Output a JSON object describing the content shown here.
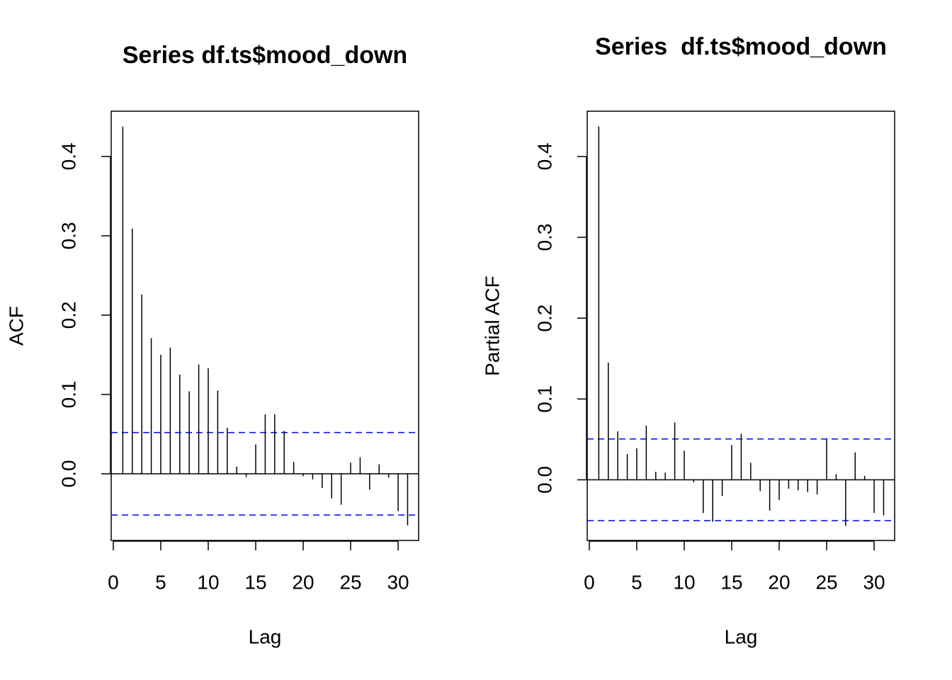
{
  "chart_data": [
    {
      "type": "acf",
      "title": "Series df.ts$mood_down",
      "xlabel": "Lag",
      "ylabel": "ACF",
      "x": [
        1,
        2,
        3,
        4,
        5,
        6,
        7,
        8,
        9,
        10,
        11,
        12,
        13,
        14,
        15,
        16,
        17,
        18,
        19,
        20,
        21,
        22,
        23,
        24,
        25,
        26,
        27,
        28,
        29,
        30,
        31
      ],
      "values": [
        0.4375,
        0.309,
        0.226,
        0.171,
        0.15,
        0.159,
        0.125,
        0.104,
        0.138,
        0.133,
        0.105,
        0.058,
        0.009,
        -0.004,
        0.037,
        0.075,
        0.075,
        0.054,
        0.015,
        -0.003,
        -0.007,
        -0.018,
        -0.031,
        -0.039,
        0.014,
        0.021,
        -0.02,
        0.012,
        -0.005,
        -0.047,
        -0.065
      ],
      "color": "#000000",
      "ci_lines": [
        0.052,
        -0.052
      ],
      "ci_color": "#0000ff",
      "xlim": [
        -0.22,
        32.16
      ],
      "ylim": [
        -0.084,
        0.457
      ],
      "xticks": [
        0,
        5,
        10,
        15,
        20,
        25,
        30
      ],
      "yticks": [
        {
          "value": 0,
          "label": "0.0"
        },
        0.1,
        0.2,
        0.3,
        0.4
      ]
    },
    {
      "type": "acf",
      "title": "Series  df.ts$mood_down",
      "xlabel": "Lag",
      "ylabel": "Partial ACF",
      "x": [
        1,
        2,
        3,
        4,
        5,
        6,
        7,
        8,
        9,
        10,
        11,
        12,
        13,
        14,
        15,
        16,
        17,
        18,
        19,
        20,
        21,
        22,
        23,
        24,
        25,
        26,
        27,
        28,
        29,
        30,
        31
      ],
      "values": [
        0.437,
        0.145,
        0.06,
        0.032,
        0.039,
        0.067,
        0.01,
        0.009,
        0.071,
        0.036,
        -0.003,
        -0.041,
        -0.052,
        -0.02,
        0.043,
        0.057,
        0.021,
        -0.014,
        -0.038,
        -0.025,
        -0.011,
        -0.013,
        -0.015,
        -0.018,
        0.05,
        0.007,
        -0.057,
        0.034,
        0.005,
        -0.041,
        -0.044
      ],
      "color": "#000000",
      "ci_lines": [
        0.0505,
        -0.0505
      ],
      "ci_color": "#0000ff",
      "xlim": [
        -0.22,
        32.16
      ],
      "ylim": [
        -0.075,
        0.456
      ],
      "xticks": [
        0,
        5,
        10,
        15,
        20,
        25,
        30
      ],
      "yticks": [
        {
          "value": 0,
          "label": "0.0"
        },
        0.1,
        0.2,
        0.3,
        0.4
      ]
    }
  ]
}
